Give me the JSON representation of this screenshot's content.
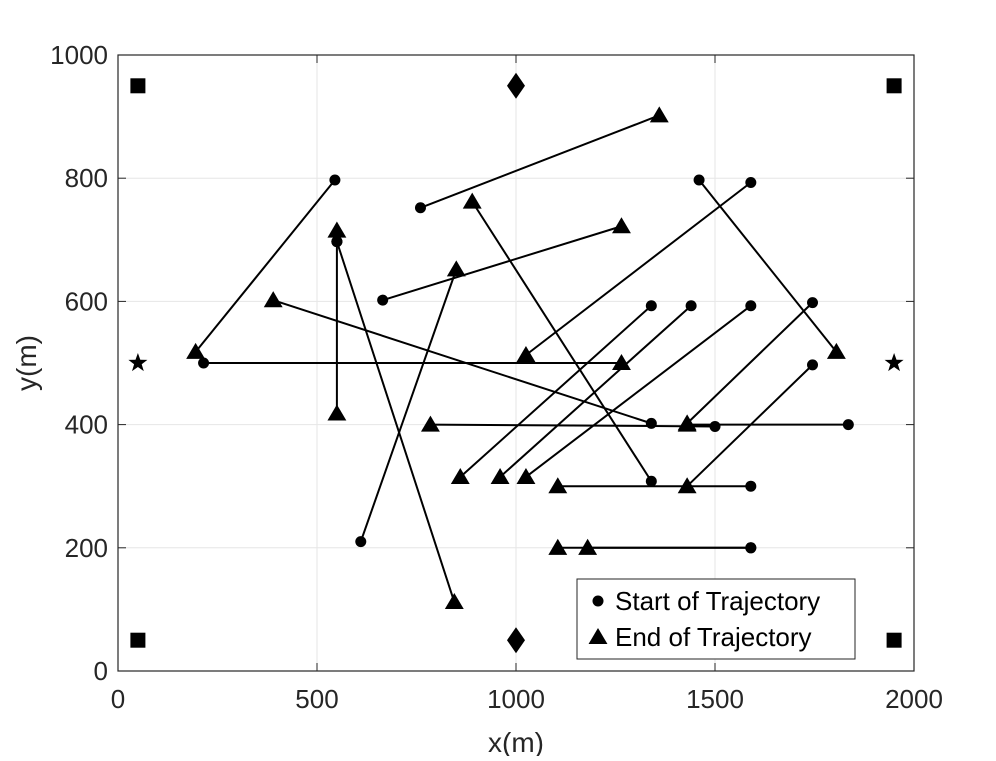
{
  "chart_data": {
    "type": "scatter",
    "xlabel": "x(m)",
    "ylabel": "y(m)",
    "xlim": [
      0,
      2000
    ],
    "ylim": [
      0,
      1000
    ],
    "xticks": [
      0,
      500,
      1000,
      1500,
      2000
    ],
    "yticks": [
      0,
      200,
      400,
      600,
      800,
      1000
    ],
    "grid": true,
    "legend": {
      "placement": "bottom-right",
      "entries": [
        {
          "marker": "circle",
          "label": "Start of Trajectory"
        },
        {
          "marker": "triangle",
          "label": "End of Trajectory"
        }
      ]
    },
    "trajectories": [
      {
        "start": [
          545,
          797
        ],
        "end": [
          195,
          518
        ]
      },
      {
        "start": [
          215,
          500
        ],
        "end": [
          1265,
          500
        ]
      },
      {
        "start": [
          550,
          697
        ],
        "end": [
          550,
          715
        ]
      },
      {
        "start": [
          550,
          697
        ],
        "end": [
          550,
          418
        ]
      },
      {
        "start": [
          550,
          697
        ],
        "end": [
          845,
          112
        ]
      },
      {
        "start": [
          610,
          210
        ],
        "end": [
          850,
          652
        ]
      },
      {
        "start": [
          665,
          602
        ],
        "end": [
          1265,
          722
        ]
      },
      {
        "start": [
          760,
          752
        ],
        "end": [
          1360,
          902
        ]
      },
      {
        "start": [
          1340,
          402
        ],
        "end": [
          390,
          602
        ]
      },
      {
        "start": [
          1340,
          308
        ],
        "end": [
          890,
          762
        ]
      },
      {
        "start": [
          1340,
          593
        ],
        "end": [
          860,
          315
        ]
      },
      {
        "start": [
          1440,
          593
        ],
        "end": [
          960,
          315
        ]
      },
      {
        "start": [
          1590,
          593
        ],
        "end": [
          1025,
          315
        ]
      },
      {
        "start": [
          1590,
          793
        ],
        "end": [
          1025,
          513
        ]
      },
      {
        "start": [
          1460,
          797
        ],
        "end": [
          1805,
          518
        ]
      },
      {
        "start": [
          1745,
          598
        ],
        "end": [
          1430,
          402
        ]
      },
      {
        "start": [
          1745,
          497
        ],
        "end": [
          1430,
          300
        ]
      },
      {
        "start": [
          1500,
          397
        ],
        "end": [
          785,
          400
        ]
      },
      {
        "start": [
          1835,
          400
        ],
        "end": [
          1430,
          400
        ]
      },
      {
        "start": [
          1590,
          300
        ],
        "end": [
          1105,
          300
        ]
      },
      {
        "start": [
          1590,
          200
        ],
        "end": [
          1105,
          200
        ]
      },
      {
        "start": [
          1590,
          200
        ],
        "end": [
          1180,
          200
        ]
      }
    ],
    "base_stations": {
      "squares": [
        [
          50,
          950
        ],
        [
          1950,
          950
        ],
        [
          50,
          50
        ],
        [
          1950,
          50
        ]
      ],
      "diamonds": [
        [
          1000,
          950
        ],
        [
          1000,
          50
        ]
      ],
      "stars": [
        [
          50,
          500
        ],
        [
          1950,
          500
        ]
      ]
    }
  }
}
